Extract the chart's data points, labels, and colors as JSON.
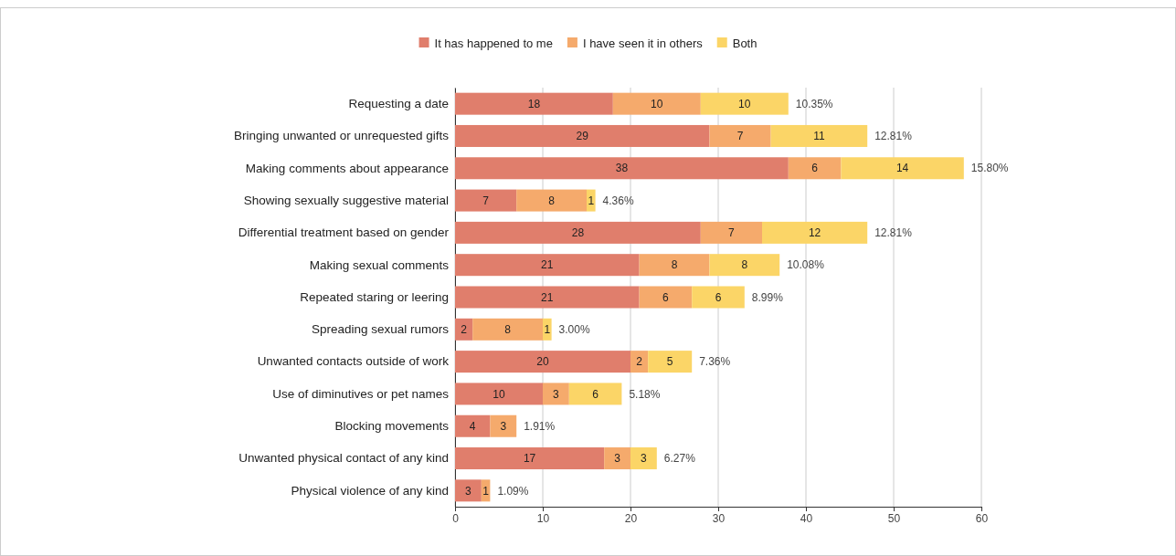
{
  "chart_data": {
    "type": "bar",
    "orientation": "horizontal",
    "stacked": true,
    "data_labels": true,
    "grid": "x",
    "legend": "top",
    "categories": [
      "Requesting a date",
      "Bringing unwanted or unrequested gifts",
      "Making comments about appearance",
      "Showing sexually suggestive material",
      "Differential treatment based on gender",
      "Making sexual comments",
      "Repeated staring or leering",
      "Spreading sexual rumors",
      "Unwanted contacts outside of work",
      "Use of diminutives or pet names",
      "Blocking movements",
      "Unwanted physical contact of any kind",
      "Physical violence of any kind"
    ],
    "series": [
      {
        "name": "It has happened to me",
        "color": "#e07e6c",
        "values": [
          18,
          29,
          38,
          7,
          28,
          21,
          21,
          2,
          20,
          10,
          4,
          17,
          3
        ]
      },
      {
        "name": "I have seen it in others",
        "color": "#f5aa6c",
        "values": [
          10,
          7,
          6,
          8,
          7,
          8,
          6,
          8,
          2,
          3,
          3,
          3,
          1
        ]
      },
      {
        "name": "Both",
        "color": "#fbd567",
        "values": [
          10,
          11,
          14,
          1,
          12,
          8,
          6,
          1,
          5,
          6,
          null,
          3,
          null
        ]
      }
    ],
    "annotations": [
      {
        "text": "10.35%",
        "x": 38,
        "y": "Requesting a date"
      },
      {
        "text": "12.81%",
        "x": 47,
        "y": "Bringing unwanted or unrequested gifts"
      },
      {
        "text": "15.80%",
        "x": 58,
        "y": "Making comments about appearance"
      },
      {
        "text": "4.36%",
        "x": 16,
        "y": "Showing sexually suggestive material"
      },
      {
        "text": "12.81%",
        "x": 47,
        "y": "Differential treatment based on gender"
      },
      {
        "text": "10.08%",
        "x": 37,
        "y": "Making sexual comments"
      },
      {
        "text": "8.99%",
        "x": 33,
        "y": "Repeated staring or leering"
      },
      {
        "text": "3.00%",
        "x": 11,
        "y": "Spreading sexual rumors"
      },
      {
        "text": "7.36%",
        "x": 27,
        "y": "Unwanted contacts outside of work"
      },
      {
        "text": "5.18%",
        "x": 19,
        "y": "Use of diminutives or pet names"
      },
      {
        "text": "1.91%",
        "x": 7,
        "y": "Blocking movements"
      },
      {
        "text": "6.27%",
        "x": 23,
        "y": "Unwanted physical contact of any kind"
      },
      {
        "text": "1.09%",
        "x": 4,
        "y": "Physical violence of any kind"
      }
    ],
    "xlim": [
      0,
      60
    ],
    "xticks": [
      0,
      10,
      20,
      30,
      40,
      50,
      60
    ]
  }
}
